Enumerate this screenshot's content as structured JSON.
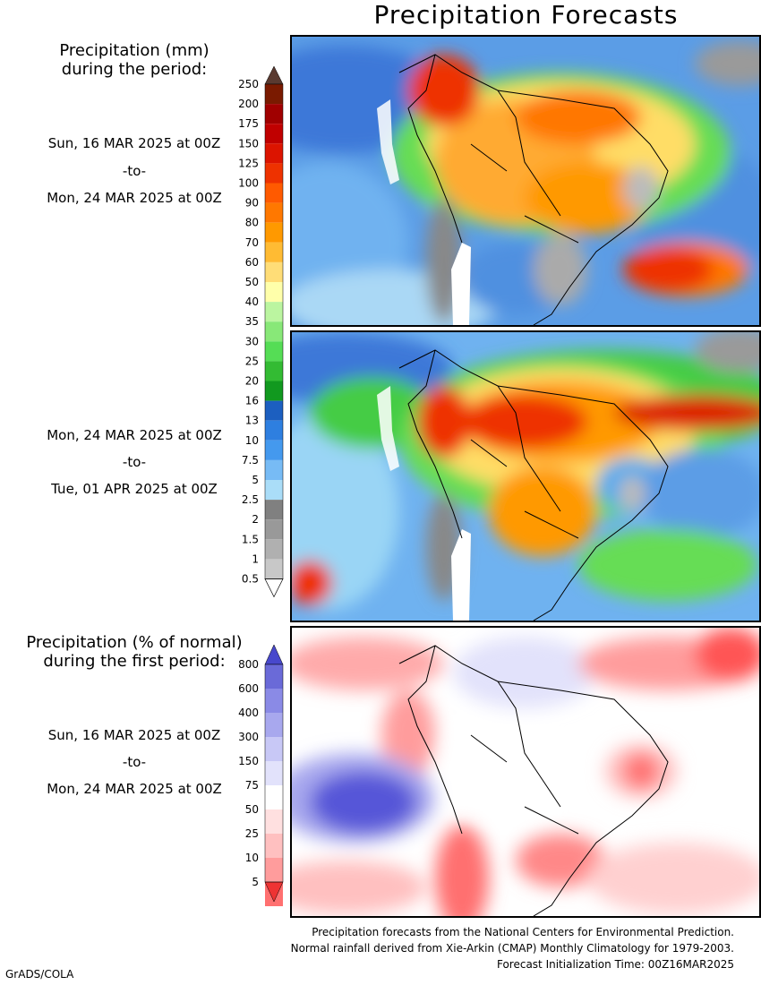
{
  "title": "Precipitation Forecasts",
  "legend_mm": {
    "heading_line1": "Precipitation (mm)",
    "heading_line2": "during the period:",
    "levels": [
      "250",
      "200",
      "175",
      "150",
      "125",
      "100",
      "90",
      "80",
      "70",
      "60",
      "50",
      "40",
      "35",
      "30",
      "25",
      "20",
      "16",
      "13",
      "10",
      "7.5",
      "5",
      "2.5",
      "2",
      "1.5",
      "1",
      "0.5"
    ],
    "colors": [
      "#7a1a00",
      "#a00000",
      "#c00000",
      "#dc1400",
      "#ee3200",
      "#ff5a00",
      "#ff7800",
      "#ff9900",
      "#ffbb33",
      "#ffdd77",
      "#ffffaa",
      "#bbf5a0",
      "#88e878",
      "#55dd55",
      "#33bb33",
      "#11991f",
      "#1c5fc0",
      "#2e7fe0",
      "#4499ee",
      "#77bbf5",
      "#aaddf8",
      "#808080",
      "#999999",
      "#b0b0b0",
      "#c8c8c8"
    ],
    "top_arrow_color": "#5a3a30"
  },
  "legend_pct": {
    "heading_line1": "Precipitation (% of normal)",
    "heading_line2": "during the first period:",
    "levels": [
      "800",
      "600",
      "400",
      "300",
      "150",
      "75",
      "50",
      "25",
      "10",
      "5"
    ],
    "colors": [
      "#6a6ad8",
      "#8a8ae6",
      "#a8a8ee",
      "#c8c8f6",
      "#e2e2fb",
      "#ffffff",
      "#ffe0e0",
      "#ffc0c0",
      "#ff9c9c",
      "#ff7070"
    ],
    "top_arrow_color": "#4848cc",
    "bottom_arrow_color": "#ee3333"
  },
  "periods": [
    {
      "start": "Sun, 16 MAR 2025 at 00Z",
      "sep": "-to-",
      "end": "Mon, 24 MAR 2025 at 00Z"
    },
    {
      "start": "Mon, 24 MAR 2025 at 00Z",
      "sep": "-to-",
      "end": "Tue, 01 APR 2025 at 00Z"
    },
    {
      "start": "Sun, 16 MAR 2025 at 00Z",
      "sep": "-to-",
      "end": "Mon, 24 MAR 2025 at 00Z"
    }
  ],
  "footer": {
    "line1": "Precipitation forecasts from the National Centers for Environmental Prediction.",
    "line2": "Normal rainfall derived from Xie-Arkin (CMAP) Monthly Climatology for 1979-2003.",
    "line3": "Forecast Initialization Time: 00Z16MAR2025"
  },
  "credit": "GrADS/COLA"
}
